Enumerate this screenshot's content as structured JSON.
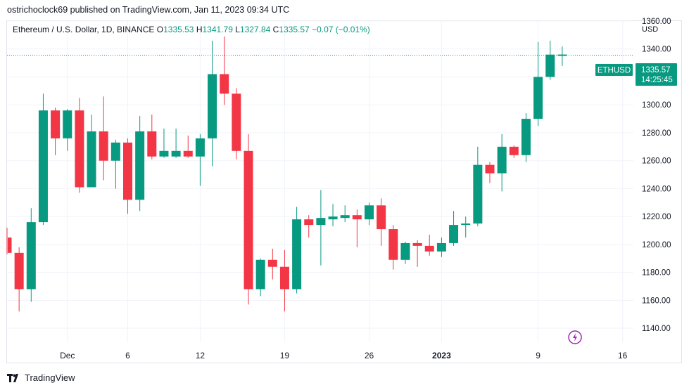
{
  "header": {
    "published": "ostrichoclock69 published on TradingView.com, Jan 11, 2023 09:34 UTC"
  },
  "legend": {
    "symbol": "Ethereum / U.S. Dollar, 1D, BINANCE",
    "o_label": "O",
    "o_value": "1335.53",
    "h_label": "H",
    "h_value": "1341.79",
    "l_label": "L",
    "l_value": "1327.84",
    "c_label": "C",
    "c_value": "1335.57",
    "change": "−0.07 (−0.01%)"
  },
  "axis": {
    "currency": "USD"
  },
  "price_tag": {
    "ticker": "ETHUSD",
    "price": "1335.57",
    "countdown": "14:25:45"
  },
  "branding": {
    "name": "TradingView"
  },
  "colors": {
    "up": "#089981",
    "down": "#f23645",
    "grid": "#f0f3fa",
    "tag": "#089981",
    "event_icon": "#9c27b0"
  },
  "chart_data": {
    "type": "candlestick",
    "title": "Ethereum / U.S. Dollar, 1D, BINANCE",
    "ylabel": "USD",
    "ylim": [
      1130,
      1360
    ],
    "y_ticks": [
      1140,
      1160,
      1180,
      1200,
      1220,
      1240,
      1260,
      1280,
      1300,
      1320,
      1340,
      1360
    ],
    "x_ticks": [
      {
        "label": "Dec",
        "date": "2022-12-01"
      },
      {
        "label": "6",
        "date": "2022-12-06"
      },
      {
        "label": "12",
        "date": "2022-12-12"
      },
      {
        "label": "19",
        "date": "2022-12-19"
      },
      {
        "label": "26",
        "date": "2022-12-26"
      },
      {
        "label": "2023",
        "date": "2023-01-01",
        "bold": true
      },
      {
        "label": "9",
        "date": "2023-01-09"
      },
      {
        "label": "16",
        "date": "2023-01-16"
      }
    ],
    "last_price": 1335.57,
    "candles": [
      {
        "date": "2022-11-26",
        "o": 1205,
        "h": 1212,
        "l": 1193,
        "c": 1194
      },
      {
        "date": "2022-11-27",
        "o": 1194,
        "h": 1198,
        "l": 1152,
        "c": 1168
      },
      {
        "date": "2022-11-28",
        "o": 1168,
        "h": 1226,
        "l": 1159,
        "c": 1216
      },
      {
        "date": "2022-11-29",
        "o": 1216,
        "h": 1308,
        "l": 1214,
        "c": 1296
      },
      {
        "date": "2022-11-30",
        "o": 1296,
        "h": 1298,
        "l": 1264,
        "c": 1276
      },
      {
        "date": "2022-12-01",
        "o": 1276,
        "h": 1297,
        "l": 1267,
        "c": 1296
      },
      {
        "date": "2022-12-02",
        "o": 1296,
        "h": 1305,
        "l": 1237,
        "c": 1241
      },
      {
        "date": "2022-12-03",
        "o": 1241,
        "h": 1293,
        "l": 1241,
        "c": 1281
      },
      {
        "date": "2022-12-04",
        "o": 1281,
        "h": 1306,
        "l": 1246,
        "c": 1260
      },
      {
        "date": "2022-12-05",
        "o": 1260,
        "h": 1275,
        "l": 1240,
        "c": 1273
      },
      {
        "date": "2022-12-06",
        "o": 1273,
        "h": 1276,
        "l": 1222,
        "c": 1232
      },
      {
        "date": "2022-12-07",
        "o": 1232,
        "h": 1292,
        "l": 1224,
        "c": 1281
      },
      {
        "date": "2022-12-08",
        "o": 1281,
        "h": 1293,
        "l": 1261,
        "c": 1263
      },
      {
        "date": "2022-12-09",
        "o": 1263,
        "h": 1283,
        "l": 1262,
        "c": 1267
      },
      {
        "date": "2022-12-10",
        "o": 1263,
        "h": 1283,
        "l": 1262,
        "c": 1267
      },
      {
        "date": "2022-12-11",
        "o": 1267,
        "h": 1278,
        "l": 1262,
        "c": 1263
      },
      {
        "date": "2022-12-12",
        "o": 1263,
        "h": 1279,
        "l": 1242,
        "c": 1276
      },
      {
        "date": "2022-12-13",
        "o": 1276,
        "h": 1346,
        "l": 1256,
        "c": 1322
      },
      {
        "date": "2022-12-14",
        "o": 1322,
        "h": 1349,
        "l": 1300,
        "c": 1308
      },
      {
        "date": "2022-12-15",
        "o": 1308,
        "h": 1312,
        "l": 1261,
        "c": 1267
      },
      {
        "date": "2022-12-16",
        "o": 1267,
        "h": 1279,
        "l": 1157,
        "c": 1168
      },
      {
        "date": "2022-12-17",
        "o": 1168,
        "h": 1190,
        "l": 1163,
        "c": 1189
      },
      {
        "date": "2022-12-18",
        "o": 1189,
        "h": 1197,
        "l": 1175,
        "c": 1184
      },
      {
        "date": "2022-12-19",
        "o": 1184,
        "h": 1196,
        "l": 1152,
        "c": 1168
      },
      {
        "date": "2022-12-20",
        "o": 1168,
        "h": 1227,
        "l": 1165,
        "c": 1218
      },
      {
        "date": "2022-12-21",
        "o": 1218,
        "h": 1221,
        "l": 1205,
        "c": 1214
      },
      {
        "date": "2022-12-22",
        "o": 1214,
        "h": 1239,
        "l": 1185,
        "c": 1219
      },
      {
        "date": "2022-12-23",
        "o": 1218,
        "h": 1229,
        "l": 1213,
        "c": 1220
      },
      {
        "date": "2022-12-24",
        "o": 1219,
        "h": 1228,
        "l": 1216,
        "c": 1221
      },
      {
        "date": "2022-12-25",
        "o": 1221,
        "h": 1225,
        "l": 1198,
        "c": 1218
      },
      {
        "date": "2022-12-26",
        "o": 1218,
        "h": 1230,
        "l": 1214,
        "c": 1228
      },
      {
        "date": "2022-12-27",
        "o": 1228,
        "h": 1233,
        "l": 1199,
        "c": 1211
      },
      {
        "date": "2022-12-28",
        "o": 1211,
        "h": 1214,
        "l": 1182,
        "c": 1189
      },
      {
        "date": "2022-12-29",
        "o": 1189,
        "h": 1202,
        "l": 1186,
        "c": 1201
      },
      {
        "date": "2022-12-30",
        "o": 1201,
        "h": 1203,
        "l": 1184,
        "c": 1199
      },
      {
        "date": "2022-12-31",
        "o": 1199,
        "h": 1207,
        "l": 1192,
        "c": 1195
      },
      {
        "date": "2023-01-01",
        "o": 1195,
        "h": 1205,
        "l": 1191,
        "c": 1201
      },
      {
        "date": "2023-01-02",
        "o": 1201,
        "h": 1224,
        "l": 1199,
        "c": 1214
      },
      {
        "date": "2023-01-03",
        "o": 1214,
        "h": 1220,
        "l": 1205,
        "c": 1215
      },
      {
        "date": "2023-01-04",
        "o": 1215,
        "h": 1270,
        "l": 1213,
        "c": 1257
      },
      {
        "date": "2023-01-05",
        "o": 1257,
        "h": 1259,
        "l": 1244,
        "c": 1251
      },
      {
        "date": "2023-01-06",
        "o": 1251,
        "h": 1279,
        "l": 1238,
        "c": 1270
      },
      {
        "date": "2023-01-07",
        "o": 1270,
        "h": 1271,
        "l": 1262,
        "c": 1264
      },
      {
        "date": "2023-01-08",
        "o": 1264,
        "h": 1294,
        "l": 1259,
        "c": 1290
      },
      {
        "date": "2023-01-09",
        "o": 1290,
        "h": 1345,
        "l": 1285,
        "c": 1320
      },
      {
        "date": "2023-01-10",
        "o": 1320,
        "h": 1346,
        "l": 1318,
        "c": 1336
      },
      {
        "date": "2023-01-11",
        "o": 1335.53,
        "h": 1341.79,
        "l": 1327.84,
        "c": 1335.57
      }
    ],
    "event_marker": {
      "date": "2023-01-12",
      "icon": "lightning-icon"
    }
  }
}
